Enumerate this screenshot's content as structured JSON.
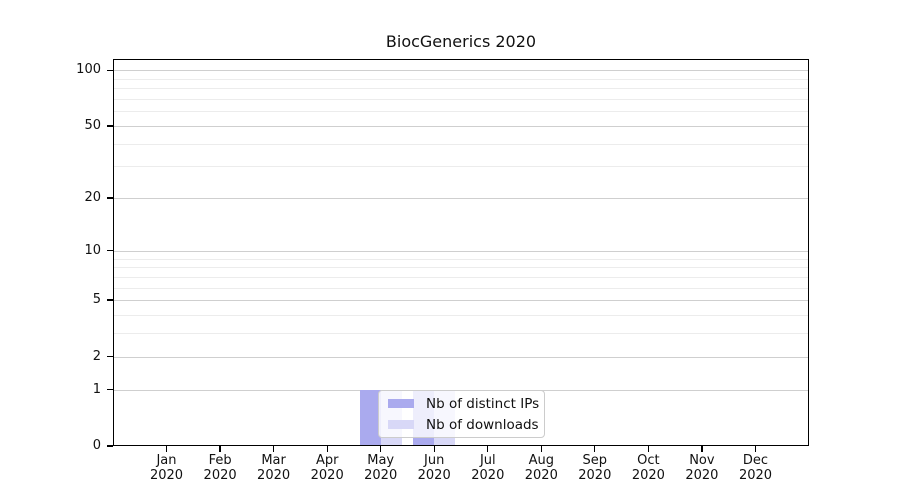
{
  "figure": {
    "title": "BiocGenerics 2020"
  },
  "chart_data": {
    "type": "bar",
    "title": "BiocGenerics 2020",
    "categories": [
      "Jan",
      "Feb",
      "Mar",
      "Apr",
      "May",
      "Jun",
      "Jul",
      "Aug",
      "Sep",
      "Oct",
      "Nov",
      "Dec"
    ],
    "year_label": "2020",
    "series": [
      {
        "name": "Nb of distinct IPs",
        "color": "#aaaaee",
        "values": [
          0,
          0,
          0,
          0,
          1,
          1,
          0,
          0,
          0,
          0,
          0,
          0
        ]
      },
      {
        "name": "Nb of downloads",
        "color": "#d8d8f7",
        "values": [
          0,
          0,
          0,
          0,
          1,
          1,
          0,
          0,
          0,
          0,
          0,
          0
        ]
      }
    ],
    "yscale": "log1p",
    "ylim": [
      0,
      115
    ],
    "yticks": [
      0,
      1,
      2,
      5,
      10,
      20,
      50,
      100
    ],
    "yticks_minor": [
      3,
      4,
      6,
      7,
      8,
      9,
      30,
      40,
      60,
      70,
      80,
      90
    ],
    "grid": true,
    "legend": {
      "position": "lower-center",
      "entries": [
        "Nb of distinct IPs",
        "Nb of downloads"
      ]
    },
    "xlabel": "",
    "ylabel": ""
  },
  "colors": {
    "bar_distinct_ips": "#aaaaee",
    "bar_downloads": "#d8d8f7",
    "grid_major": "#cfcfcf",
    "grid_minor": "#ececec",
    "spine": "#000000",
    "text": "#111111",
    "legend_border": "#cccccc"
  }
}
